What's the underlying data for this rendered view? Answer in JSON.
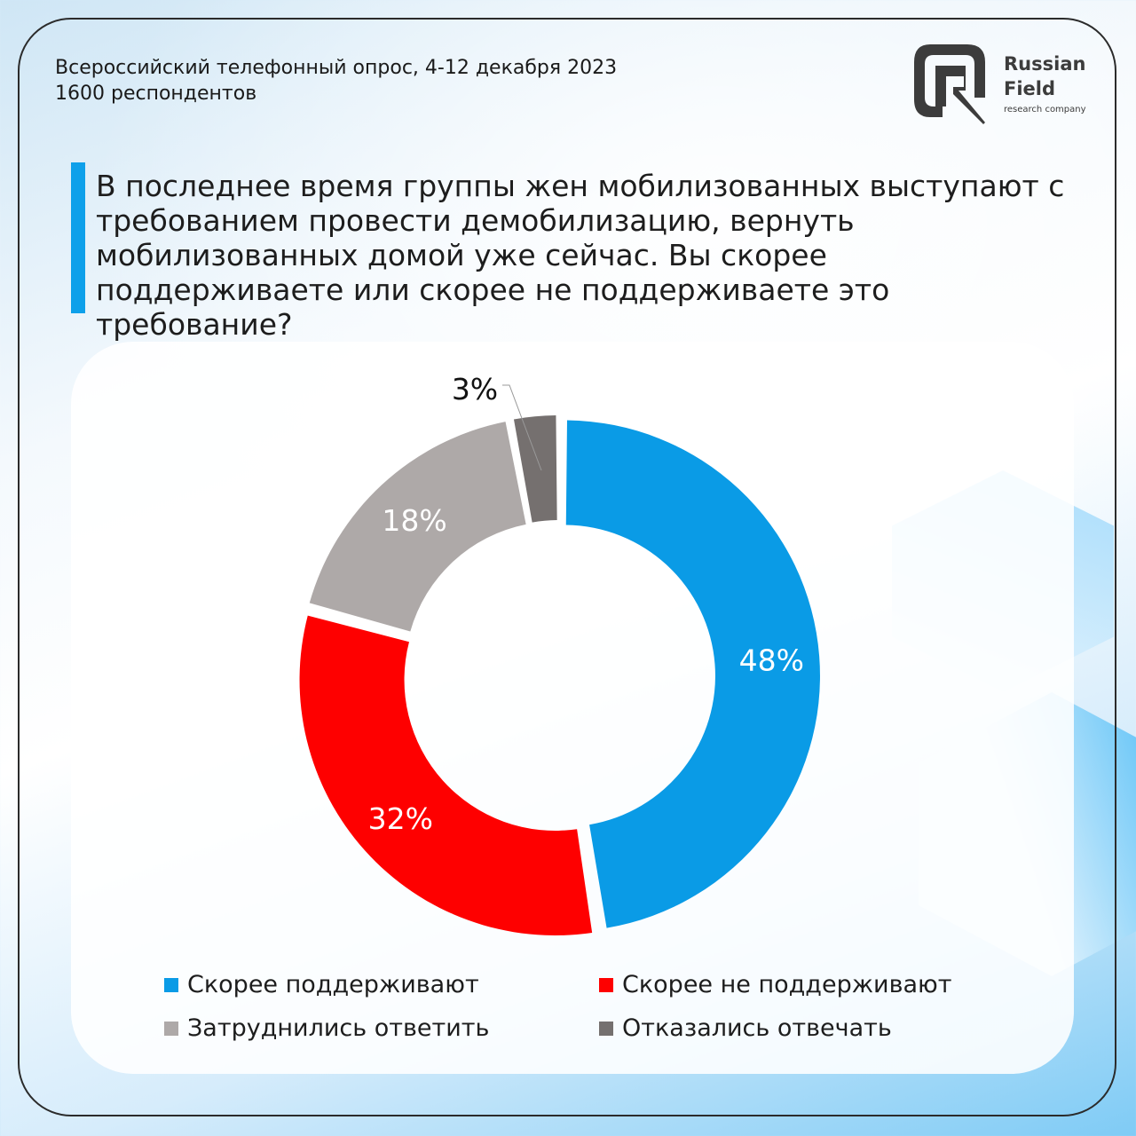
{
  "header": {
    "survey_line1": "Всероссийский телефонный опрос, 4-12 декабря 2023",
    "survey_line2": "1600 респондентов"
  },
  "logo": {
    "name_line1": "Russian",
    "name_line2": "Field",
    "tagline": "research company"
  },
  "question": "В последнее время группы жен мобилизованных выступают с требованием провести демобилизацию, вернуть мобилизованных домой уже сейчас. Вы скорее поддерживаете или скорее не поддерживаете это требование?",
  "chart_data": {
    "type": "pie",
    "title": "В последнее время группы жен мобилизованных выступают с требованием провести демобилизацию, вернуть мобилизованных домой уже сейчас. Вы скорее поддерживаете или скорее не поддерживаете это требование?",
    "categories": [
      "Скорее поддерживают",
      "Скорее не поддерживают",
      "Затруднились ответить",
      "Отказались отвечать"
    ],
    "values": [
      48,
      32,
      18,
      3
    ],
    "labels": [
      "48%",
      "32%",
      "18%",
      "3%"
    ],
    "colors": [
      "#0a9be6",
      "#fe0000",
      "#aea9a8",
      "#75706f"
    ],
    "label_colors": [
      "#ffffff",
      "#ffffff",
      "#ffffff",
      "#111111"
    ],
    "donut": true,
    "legend_position": "bottom"
  }
}
